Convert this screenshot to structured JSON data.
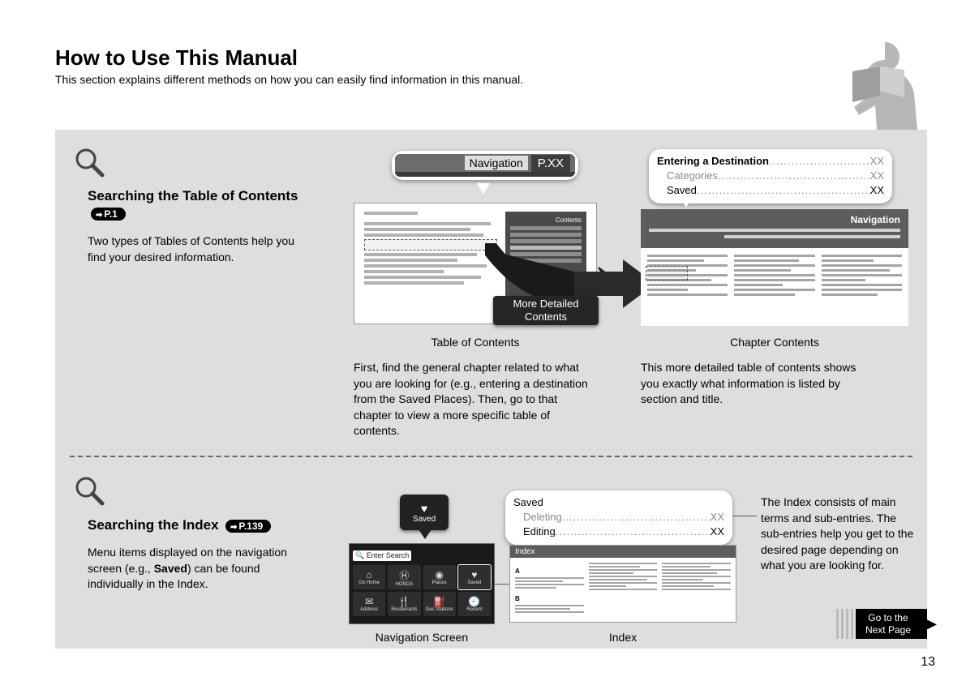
{
  "page": {
    "title": "How to Use This Manual",
    "subtitle": "This section explains different methods on how you can easily find information in this manual.",
    "number": "13"
  },
  "colors": {
    "card_bg": "#dedede",
    "dark": "#252525",
    "mid_gray": "#5d5d5d",
    "line_gray": "#a5a5a5",
    "text_gray": "#8a8a8a"
  },
  "section_toc": {
    "heading": "Searching the Table of Contents",
    "badge": "P.1",
    "body": "Two types of Tables of Contents help you find your desired information.",
    "nav_callout_label": "Navigation",
    "nav_callout_page": "P.XX",
    "more_detailed_top": "More Detailed",
    "more_detailed_bottom": "Contents",
    "toc_label": "Table of Contents",
    "toc_desc": "First, find the general chapter related to what you are looking for (e.g., entering a destination from the Saved Places). Then, go to that chapter to view a more specific table of contents.",
    "chapter_label": "Chapter Contents",
    "chapter_desc": "This more detailed table of contents shows you exactly what information is listed by section and title.",
    "chapter_header_text": "Navigation",
    "entering_callout": {
      "title": "Entering a Destination",
      "title_page": "XX",
      "rows": [
        {
          "label": "Categories",
          "page": "XX",
          "gray": true
        },
        {
          "label": "Saved",
          "page": "XX",
          "gray": false
        }
      ]
    }
  },
  "section_index": {
    "heading": "Searching the Index",
    "badge": "P.139",
    "body_before": "Menu items displayed on the navigation screen (e.g., ",
    "body_bold": "Saved",
    "body_after": ") can be found individually in the Index.",
    "navscreen_label": "Navigation Screen",
    "navscreen_search": "🔍 Enter Search",
    "navscreen_cells": [
      {
        "icon": "⌂",
        "label": "Go Home"
      },
      {
        "icon": "Ⓗ",
        "label": "HONDA"
      },
      {
        "icon": "◉",
        "label": "Places"
      },
      {
        "icon": "♥",
        "label": "Saved"
      },
      {
        "icon": "✉",
        "label": "Address"
      },
      {
        "icon": "🍴",
        "label": "Restaurants"
      },
      {
        "icon": "⛽",
        "label": "Gas Stations"
      },
      {
        "icon": "🕘",
        "label": "Recent"
      }
    ],
    "saved_bubble": "Saved",
    "saved_callout": {
      "title": "Saved",
      "rows": [
        {
          "label": "Deleting",
          "page": "XX",
          "gray": true
        },
        {
          "label": "Editing",
          "page": "XX",
          "gray": false
        }
      ]
    },
    "index_label": "Index",
    "index_header": "Index",
    "index_desc": "The Index consists of main terms and sub-entries. The sub-entries help you get to the desired page depending on what you are looking for."
  },
  "goto": {
    "line1": "Go to the",
    "line2": "Next Page"
  }
}
